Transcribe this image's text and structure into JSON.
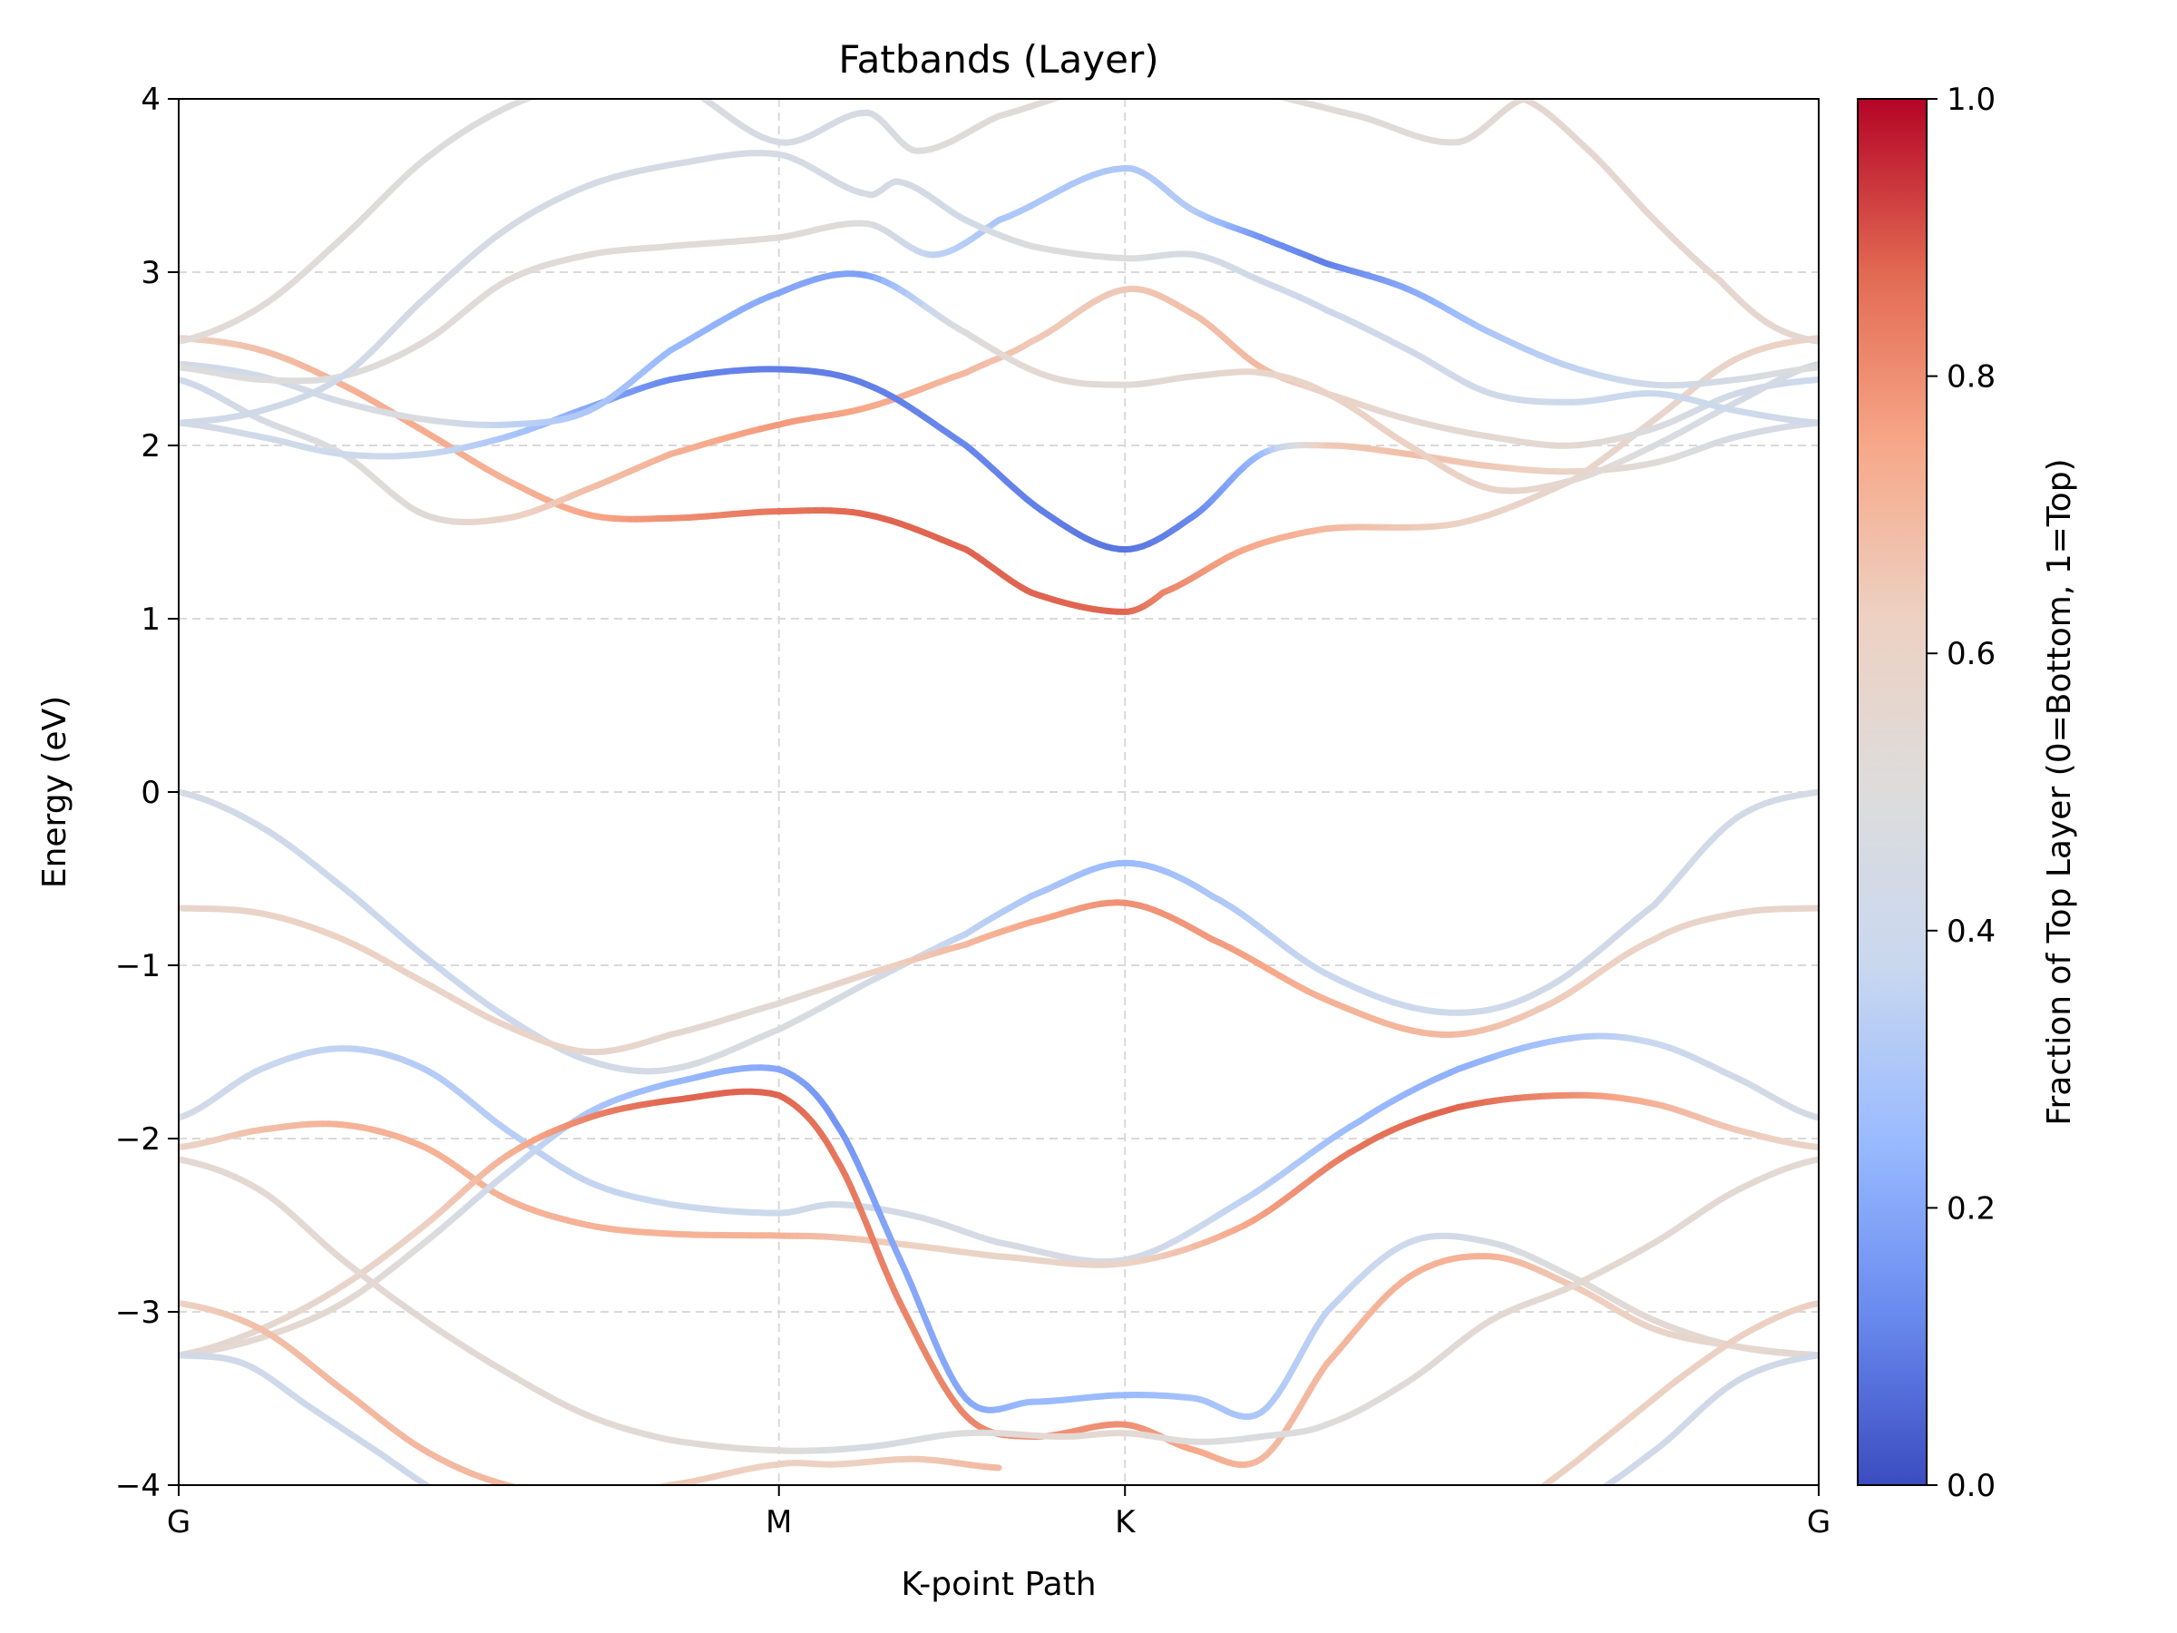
{
  "chart_data": {
    "type": "line",
    "title": "Fatbands (Layer)",
    "xlabel": "K-point Path",
    "ylabel": "Energy (eV)",
    "ylim": [
      -4,
      4
    ],
    "yticks": [
      -4,
      -3,
      -2,
      -1,
      0,
      1,
      2,
      3,
      4
    ],
    "ytick_labels": [
      "−4",
      "−3",
      "−2",
      "−1",
      "0",
      "1",
      "2",
      "3",
      "4"
    ],
    "xlim": [
      0,
      1
    ],
    "xticks": [
      {
        "label": "G",
        "x": 0.0
      },
      {
        "label": "M",
        "x": 0.366
      },
      {
        "label": "K",
        "x": 0.577
      },
      {
        "label": "G",
        "x": 1.0
      }
    ],
    "grid": true,
    "colormap": "coolwarm",
    "colorbar": {
      "label": "Fraction of Top Layer (0=Bottom, 1=Top)",
      "range": [
        0,
        1
      ],
      "ticks": [
        "0.0",
        "0.2",
        "0.4",
        "0.6",
        "0.8",
        "1.0"
      ],
      "colors": [
        "#3b4cc0",
        "#6a8bef",
        "#9abbff",
        "#c9d8ef",
        "#dddcdc",
        "#edd1c2",
        "#f7a889",
        "#e26952",
        "#b40426"
      ]
    },
    "series": [
      {
        "x": [
          0.0,
          0.05,
          0.1,
          0.15,
          0.2,
          0.25,
          0.3,
          0.366,
          0.42,
          0.48,
          0.52,
          0.577,
          0.63,
          0.7,
          0.77,
          0.83,
          0.9,
          0.95,
          1.0
        ],
        "y": [
          0.0,
          -0.2,
          -0.55,
          -0.95,
          -1.3,
          -1.55,
          -1.6,
          -1.37,
          -1.1,
          -0.82,
          -0.6,
          -0.41,
          -0.6,
          -1.05,
          -1.27,
          -1.15,
          -0.65,
          -0.15,
          0.0
        ],
        "f": [
          0.45,
          0.42,
          0.4,
          0.38,
          0.4,
          0.42,
          0.45,
          0.48,
          0.45,
          0.35,
          0.3,
          0.25,
          0.3,
          0.38,
          0.4,
          0.42,
          0.42,
          0.43,
          0.45
        ]
      },
      {
        "x": [
          0.0,
          0.05,
          0.1,
          0.15,
          0.2,
          0.25,
          0.3,
          0.366,
          0.42,
          0.48,
          0.52,
          0.577,
          0.63,
          0.7,
          0.77,
          0.83,
          0.9,
          0.95,
          1.0
        ],
        "y": [
          -0.67,
          -0.7,
          -0.85,
          -1.1,
          -1.35,
          -1.5,
          -1.4,
          -1.22,
          -1.05,
          -0.88,
          -0.75,
          -0.64,
          -0.85,
          -1.2,
          -1.4,
          -1.25,
          -0.85,
          -0.7,
          -0.67
        ],
        "f": [
          0.58,
          0.6,
          0.62,
          0.6,
          0.6,
          0.58,
          0.56,
          0.53,
          0.6,
          0.7,
          0.75,
          0.8,
          0.78,
          0.72,
          0.7,
          0.65,
          0.6,
          0.58,
          0.58
        ]
      },
      {
        "x": [
          0.0,
          0.05,
          0.1,
          0.15,
          0.2,
          0.25,
          0.3,
          0.366,
          0.4,
          0.45,
          0.5,
          0.577,
          0.65,
          0.72,
          0.78,
          0.85,
          0.9,
          0.95,
          1.0
        ],
        "y": [
          -1.88,
          -1.6,
          -1.48,
          -1.6,
          -1.95,
          -2.25,
          -2.38,
          -2.43,
          -2.38,
          -2.45,
          -2.6,
          -2.7,
          -2.35,
          -1.9,
          -1.6,
          -1.42,
          -1.45,
          -1.65,
          -1.88
        ],
        "f": [
          0.45,
          0.38,
          0.35,
          0.32,
          0.33,
          0.36,
          0.38,
          0.4,
          0.42,
          0.45,
          0.45,
          0.45,
          0.35,
          0.25,
          0.22,
          0.3,
          0.38,
          0.42,
          0.45
        ]
      },
      {
        "x": [
          0.0,
          0.05,
          0.1,
          0.15,
          0.2,
          0.25,
          0.3,
          0.366,
          0.4,
          0.45,
          0.5,
          0.577,
          0.65,
          0.72,
          0.78,
          0.85,
          0.9,
          0.95,
          1.0
        ],
        "y": [
          -2.05,
          -1.95,
          -1.92,
          -2.05,
          -2.35,
          -2.5,
          -2.55,
          -2.56,
          -2.57,
          -2.62,
          -2.68,
          -2.72,
          -2.5,
          -2.05,
          -1.82,
          -1.75,
          -1.8,
          -1.95,
          -2.05
        ],
        "f": [
          0.6,
          0.68,
          0.72,
          0.72,
          0.72,
          0.72,
          0.72,
          0.72,
          0.68,
          0.62,
          0.6,
          0.6,
          0.75,
          0.85,
          0.88,
          0.8,
          0.72,
          0.65,
          0.6
        ]
      },
      {
        "x": [
          0.0,
          0.05,
          0.1,
          0.15,
          0.2,
          0.25,
          0.3,
          0.366,
          0.4,
          0.44,
          0.48,
          0.52,
          0.577,
          0.62,
          0.66,
          0.7,
          0.75,
          0.8,
          0.85,
          0.9,
          0.95,
          1.0
        ],
        "y": [
          -3.25,
          -3.15,
          -2.95,
          -2.6,
          -2.2,
          -1.85,
          -1.68,
          -1.6,
          -1.9,
          -2.7,
          -3.5,
          -3.52,
          -3.48,
          -3.5,
          -3.58,
          -3.0,
          -2.6,
          -2.6,
          -2.8,
          -3.05,
          -3.2,
          -3.25
        ],
        "f": [
          0.55,
          0.55,
          0.55,
          0.5,
          0.4,
          0.3,
          0.25,
          0.2,
          0.15,
          0.2,
          0.2,
          0.25,
          0.25,
          0.28,
          0.3,
          0.35,
          0.4,
          0.45,
          0.5,
          0.55,
          0.55,
          0.55
        ]
      },
      {
        "x": [
          0.0,
          0.05,
          0.1,
          0.15,
          0.2,
          0.25,
          0.3,
          0.366,
          0.4,
          0.44,
          0.48,
          0.52,
          0.577,
          0.62,
          0.66,
          0.7,
          0.75,
          0.8,
          0.85,
          0.9,
          0.95,
          1.0
        ],
        "y": [
          -3.25,
          -3.1,
          -2.85,
          -2.5,
          -2.1,
          -1.88,
          -1.78,
          -1.75,
          -2.1,
          -2.95,
          -3.6,
          -3.72,
          -3.65,
          -3.8,
          -3.85,
          -3.3,
          -2.8,
          -2.68,
          -2.85,
          -3.1,
          -3.2,
          -3.25
        ],
        "f": [
          0.55,
          0.56,
          0.58,
          0.62,
          0.72,
          0.82,
          0.88,
          0.88,
          0.85,
          0.82,
          0.82,
          0.8,
          0.8,
          0.75,
          0.7,
          0.7,
          0.72,
          0.72,
          0.65,
          0.6,
          0.56,
          0.55
        ]
      },
      {
        "x": [
          0.0,
          0.05,
          0.1,
          0.15,
          0.2,
          0.25,
          0.3,
          0.366,
          0.42,
          0.48,
          0.54,
          0.577,
          0.62,
          0.66,
          0.7,
          0.75,
          0.8,
          0.85,
          0.9,
          0.95,
          1.0
        ],
        "y": [
          -2.12,
          -2.3,
          -2.7,
          -3.05,
          -3.35,
          -3.6,
          -3.74,
          -3.8,
          -3.78,
          -3.7,
          -3.72,
          -3.7,
          -3.75,
          -3.72,
          -3.65,
          -3.4,
          -3.05,
          -2.85,
          -2.6,
          -2.3,
          -2.12
        ],
        "f": [
          0.55,
          0.55,
          0.55,
          0.54,
          0.54,
          0.54,
          0.53,
          0.52,
          0.45,
          0.5,
          0.55,
          0.55,
          0.5,
          0.48,
          0.5,
          0.52,
          0.55,
          0.55,
          0.55,
          0.55,
          0.55
        ]
      },
      {
        "x": [
          0.0,
          0.05,
          0.1,
          0.15,
          0.2,
          0.25,
          0.3,
          0.366,
          0.4,
          0.45,
          0.5
        ],
        "y": [
          -2.95,
          -3.1,
          -3.45,
          -3.8,
          -4.0,
          -4.05,
          -4.0,
          -3.88,
          -3.88,
          -3.85,
          -3.9
        ],
        "f": [
          0.62,
          0.68,
          0.7,
          0.7,
          0.7,
          0.68,
          0.65,
          0.62,
          0.62,
          0.65,
          0.7
        ]
      },
      {
        "x": [
          0.0,
          0.04,
          0.08,
          0.12,
          0.16,
          0.2
        ],
        "y": [
          -3.25,
          -3.3,
          -3.55,
          -3.8,
          -4.05,
          -4.2
        ],
        "f": [
          0.42,
          0.42,
          0.4,
          0.4,
          0.4,
          0.4
        ]
      },
      {
        "x": [
          0.8,
          0.84,
          0.88,
          0.92,
          0.96,
          1.0
        ],
        "y": [
          -4.2,
          -3.95,
          -3.65,
          -3.35,
          -3.1,
          -2.95
        ],
        "f": [
          0.62,
          0.62,
          0.62,
          0.62,
          0.62,
          0.62
        ]
      },
      {
        "x": [
          0.85,
          0.9,
          0.95,
          1.0
        ],
        "y": [
          -4.1,
          -3.8,
          -3.4,
          -3.25
        ],
        "f": [
          0.42,
          0.42,
          0.42,
          0.42
        ]
      },
      {
        "x": [
          0.0,
          0.05,
          0.1,
          0.15,
          0.2,
          0.25,
          0.3,
          0.366,
          0.42,
          0.48,
          0.52,
          0.577,
          0.6,
          0.65,
          0.7,
          0.78,
          0.85,
          0.9,
          0.95,
          1.0
        ],
        "y": [
          2.62,
          2.55,
          2.35,
          2.08,
          1.8,
          1.6,
          1.58,
          1.62,
          1.6,
          1.4,
          1.15,
          1.04,
          1.15,
          1.4,
          1.52,
          1.55,
          1.8,
          2.15,
          2.5,
          2.62
        ],
        "f": [
          0.62,
          0.68,
          0.72,
          0.74,
          0.72,
          0.75,
          0.8,
          0.85,
          0.88,
          0.88,
          0.88,
          0.88,
          0.82,
          0.75,
          0.7,
          0.62,
          0.58,
          0.58,
          0.6,
          0.62
        ]
      },
      {
        "x": [
          0.0,
          0.05,
          0.1,
          0.15,
          0.2,
          0.25,
          0.3,
          0.366,
          0.42,
          0.48,
          0.52,
          0.577,
          0.62,
          0.66,
          0.7,
          0.75,
          0.8,
          0.85,
          0.9,
          0.95,
          1.0
        ],
        "y": [
          2.38,
          2.15,
          1.95,
          1.6,
          1.58,
          1.75,
          1.95,
          2.12,
          2.22,
          2.42,
          2.6,
          2.9,
          2.75,
          2.45,
          2.3,
          2.15,
          2.05,
          2.0,
          2.1,
          2.3,
          2.38
        ],
        "f": [
          0.4,
          0.45,
          0.5,
          0.52,
          0.6,
          0.68,
          0.72,
          0.78,
          0.75,
          0.7,
          0.65,
          0.65,
          0.68,
          0.7,
          0.6,
          0.55,
          0.55,
          0.55,
          0.48,
          0.42,
          0.4
        ]
      },
      {
        "x": [
          0.0,
          0.05,
          0.1,
          0.15,
          0.2,
          0.25,
          0.3,
          0.366,
          0.42,
          0.48,
          0.53,
          0.577,
          0.62,
          0.66,
          0.7,
          0.75,
          0.8,
          0.85,
          0.9,
          0.95,
          1.0
        ],
        "y": [
          2.13,
          2.05,
          1.95,
          1.95,
          2.05,
          2.22,
          2.38,
          2.44,
          2.35,
          2.0,
          1.6,
          1.4,
          1.6,
          1.95,
          2.0,
          1.95,
          1.88,
          1.85,
          1.9,
          2.05,
          2.13
        ],
        "f": [
          0.45,
          0.42,
          0.4,
          0.38,
          0.3,
          0.2,
          0.12,
          0.1,
          0.1,
          0.12,
          0.1,
          0.08,
          0.12,
          0.25,
          0.65,
          0.68,
          0.65,
          0.6,
          0.52,
          0.45,
          0.45
        ]
      },
      {
        "x": [
          0.0,
          0.05,
          0.1,
          0.15,
          0.2,
          0.25,
          0.3,
          0.366,
          0.42,
          0.48,
          0.53,
          0.577,
          0.62,
          0.66,
          0.7,
          0.75,
          0.8,
          0.85,
          0.9,
          0.95,
          1.0
        ],
        "y": [
          2.47,
          2.4,
          2.25,
          2.15,
          2.12,
          2.2,
          2.55,
          2.88,
          2.98,
          2.65,
          2.4,
          2.35,
          2.4,
          2.42,
          2.3,
          2.0,
          1.75,
          1.8,
          2.0,
          2.25,
          2.47
        ],
        "f": [
          0.42,
          0.42,
          0.45,
          0.48,
          0.35,
          0.3,
          0.25,
          0.2,
          0.18,
          0.5,
          0.55,
          0.52,
          0.55,
          0.58,
          0.6,
          0.62,
          0.6,
          0.55,
          0.48,
          0.45,
          0.42
        ]
      },
      {
        "x": [
          0.0,
          0.05,
          0.1,
          0.15,
          0.2,
          0.25,
          0.3,
          0.366,
          0.42,
          0.46,
          0.5,
          0.577,
          0.62,
          0.66,
          0.7,
          0.75,
          0.8,
          0.85,
          0.9,
          0.95,
          1.0
        ],
        "y": [
          2.45,
          2.38,
          2.4,
          2.6,
          2.95,
          3.1,
          3.15,
          3.2,
          3.28,
          3.1,
          3.3,
          3.6,
          3.35,
          3.2,
          3.05,
          2.9,
          2.65,
          2.45,
          2.35,
          2.38,
          2.45
        ],
        "f": [
          0.5,
          0.5,
          0.5,
          0.52,
          0.52,
          0.52,
          0.52,
          0.52,
          0.5,
          0.35,
          0.3,
          0.3,
          0.32,
          0.15,
          0.1,
          0.2,
          0.3,
          0.35,
          0.42,
          0.45,
          0.5
        ]
      },
      {
        "x": [
          0.0,
          0.05,
          0.1,
          0.15,
          0.2,
          0.25,
          0.3,
          0.366,
          0.42,
          0.44,
          0.48,
          0.52,
          0.577,
          0.62,
          0.66,
          0.7,
          0.75,
          0.8,
          0.85,
          0.9,
          0.95,
          1.0
        ],
        "y": [
          2.13,
          2.2,
          2.4,
          2.85,
          3.25,
          3.5,
          3.62,
          3.68,
          3.45,
          3.52,
          3.3,
          3.15,
          3.08,
          3.1,
          2.95,
          2.78,
          2.55,
          2.3,
          2.25,
          2.3,
          2.2,
          2.13
        ],
        "f": [
          0.42,
          0.42,
          0.42,
          0.45,
          0.45,
          0.45,
          0.45,
          0.45,
          0.45,
          0.45,
          0.42,
          0.5,
          0.5,
          0.45,
          0.42,
          0.4,
          0.42,
          0.42,
          0.4,
          0.38,
          0.4,
          0.42
        ]
      },
      {
        "x": [
          0.0,
          0.05,
          0.1,
          0.15,
          0.2,
          0.25,
          0.3,
          0.366,
          0.42,
          0.45,
          0.5,
          0.577,
          0.65,
          0.72,
          0.78,
          0.82
        ],
        "y": [
          2.6,
          2.8,
          3.2,
          3.65,
          3.95,
          4.1,
          4.1,
          3.75,
          3.92,
          3.7,
          3.9,
          4.1,
          4.05,
          3.9,
          3.75,
          4.0
        ],
        "f": [
          0.52,
          0.52,
          0.52,
          0.5,
          0.5,
          0.5,
          0.48,
          0.45,
          0.45,
          0.5,
          0.52,
          0.52,
          0.52,
          0.52,
          0.52,
          0.55
        ]
      },
      {
        "x": [
          0.82,
          0.86,
          0.9,
          0.94,
          0.97,
          1.0
        ],
        "y": [
          4.0,
          3.7,
          3.3,
          2.95,
          2.7,
          2.6
        ],
        "f": [
          0.55,
          0.56,
          0.56,
          0.56,
          0.56,
          0.55
        ]
      }
    ]
  }
}
